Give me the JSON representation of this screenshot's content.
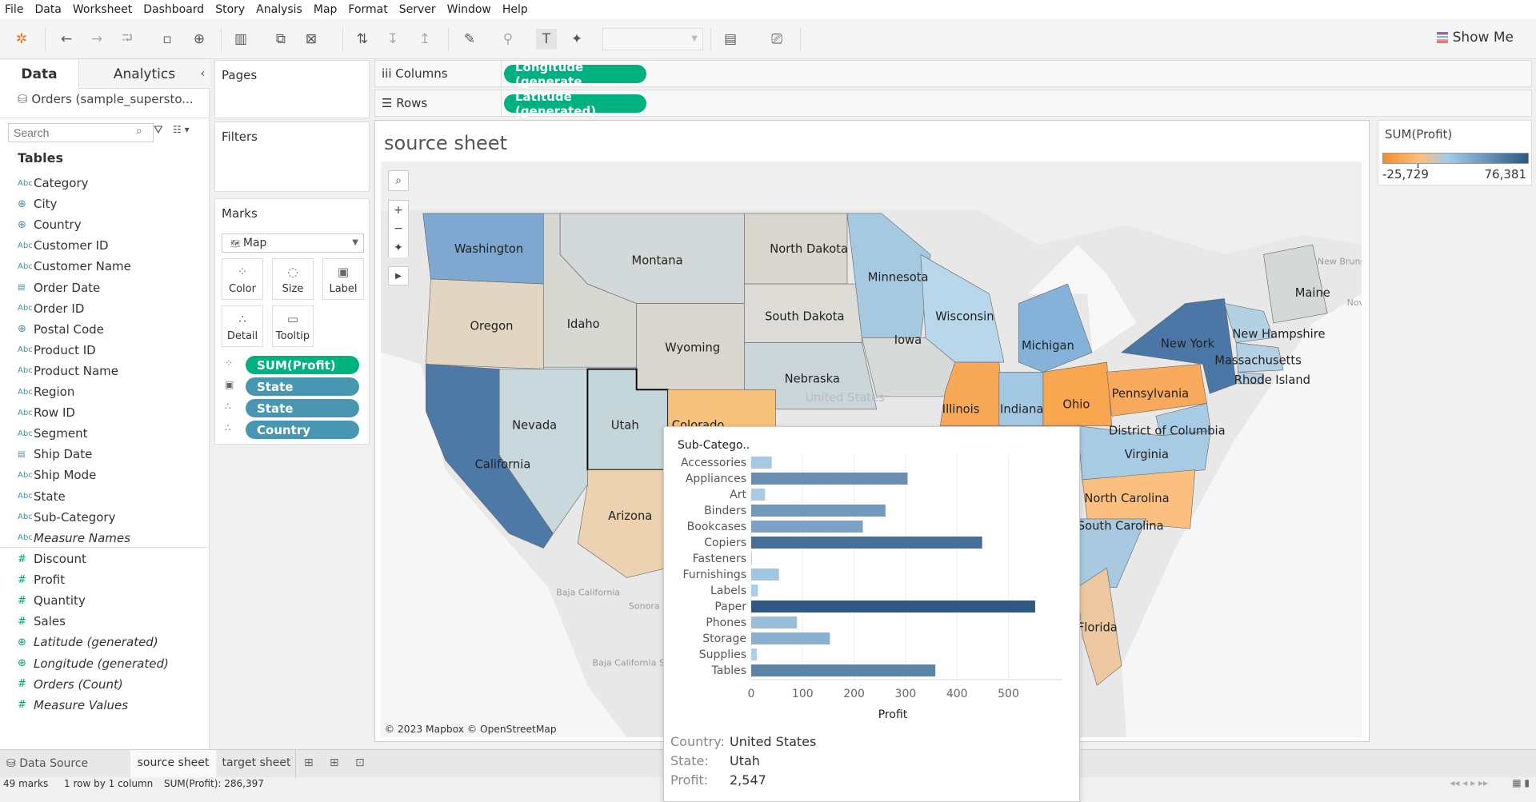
{
  "menu": [
    "File",
    "Data",
    "Worksheet",
    "Dashboard",
    "Story",
    "Analysis",
    "Map",
    "Format",
    "Server",
    "Window",
    "Help"
  ],
  "toolbar": {
    "show_me": "Show Me"
  },
  "left": {
    "tab_data": "Data",
    "tab_analytics": "Analytics",
    "datasource": "Orders (sample_supersto...",
    "search_placeholder": "Search",
    "tables_heading": "Tables",
    "dimensions": [
      {
        "icon": "Abc",
        "label": "Category"
      },
      {
        "icon": "globe",
        "label": "City"
      },
      {
        "icon": "globe",
        "label": "Country"
      },
      {
        "icon": "Abc",
        "label": "Customer ID"
      },
      {
        "icon": "Abc",
        "label": "Customer Name"
      },
      {
        "icon": "calendar",
        "label": "Order Date"
      },
      {
        "icon": "Abc",
        "label": "Order ID"
      },
      {
        "icon": "globe",
        "label": "Postal Code"
      },
      {
        "icon": "Abc",
        "label": "Product ID"
      },
      {
        "icon": "Abc",
        "label": "Product Name"
      },
      {
        "icon": "Abc",
        "label": "Region"
      },
      {
        "icon": "Abc",
        "label": "Row ID"
      },
      {
        "icon": "Abc",
        "label": "Segment"
      },
      {
        "icon": "calendar",
        "label": "Ship Date"
      },
      {
        "icon": "Abc",
        "label": "Ship Mode"
      },
      {
        "icon": "Abc",
        "label": "State"
      },
      {
        "icon": "Abc",
        "label": "Sub-Category"
      },
      {
        "icon": "Abc",
        "label": "Measure Names",
        "italic": true
      }
    ],
    "measures": [
      {
        "icon": "#",
        "label": "Discount"
      },
      {
        "icon": "#",
        "label": "Profit"
      },
      {
        "icon": "#",
        "label": "Quantity"
      },
      {
        "icon": "#",
        "label": "Sales"
      },
      {
        "icon": "globe",
        "label": "Latitude (generated)",
        "italic": true
      },
      {
        "icon": "globe",
        "label": "Longitude (generated)",
        "italic": true
      },
      {
        "icon": "#",
        "label": "Orders (Count)",
        "italic": true
      },
      {
        "icon": "#",
        "label": "Measure Values",
        "italic": true
      }
    ]
  },
  "cards": {
    "pages": "Pages",
    "filters": "Filters",
    "marks": "Marks",
    "mark_type": "Map",
    "buttons": [
      "Color",
      "Size",
      "Label",
      "Detail",
      "Tooltip"
    ],
    "pills": [
      {
        "label": "SUM(Profit)",
        "kind": "color"
      },
      {
        "label": "State",
        "kind": "label"
      },
      {
        "label": "State",
        "kind": "detail"
      },
      {
        "label": "Country",
        "kind": "detail"
      }
    ]
  },
  "shelves": {
    "columns_label": "Columns",
    "columns_pill": "Longitude (generate..",
    "rows_label": "Rows",
    "rows_pill": "Latitude (generated)"
  },
  "sheet": {
    "title": "source sheet",
    "attribution": "© 2023 Mapbox © OpenStreetMap"
  },
  "map_labels": {
    "united_states": "United States",
    "new_brunswick": "New Brunswick",
    "baja_california": "Baja California",
    "baja_california_sur": "Baja California Sur",
    "sonora": "Sonora",
    "nova": "Nova"
  },
  "states": [
    {
      "name": "Washington",
      "fill": "#7ea8cf"
    },
    {
      "name": "Oregon",
      "fill": "#e2d6c3"
    },
    {
      "name": "California",
      "fill": "#4e79a7"
    },
    {
      "name": "Nevada",
      "fill": "#c9d8dd"
    },
    {
      "name": "Idaho",
      "fill": "#d8d8d3"
    },
    {
      "name": "Montana",
      "fill": "#d3d9d8"
    },
    {
      "name": "Wyoming",
      "fill": "#d9d6cf"
    },
    {
      "name": "Utah",
      "fill": "#c5d6db"
    },
    {
      "name": "Arizona",
      "fill": "#ecd2b0"
    },
    {
      "name": "Colorado",
      "fill": "#f6c27c"
    },
    {
      "name": "North Dakota",
      "fill": "#d9d6cf"
    },
    {
      "name": "South Dakota",
      "fill": "#dcdbd6"
    },
    {
      "name": "Nebraska",
      "fill": "#cbd6db"
    },
    {
      "name": "Minnesota",
      "fill": "#a6c9e2"
    },
    {
      "name": "Iowa",
      "fill": "#d6dad9"
    },
    {
      "name": "Wisconsin",
      "fill": "#b9d7ea"
    },
    {
      "name": "Illinois",
      "fill": "#f8a957"
    },
    {
      "name": "Indiana",
      "fill": "#a3c8e4"
    },
    {
      "name": "Michigan",
      "fill": "#85b2d8"
    },
    {
      "name": "Ohio",
      "fill": "#f8a64f"
    },
    {
      "name": "Pennsylvania",
      "fill": "#f9a95b"
    },
    {
      "name": "New York",
      "fill": "#4a77a5"
    },
    {
      "name": "Maine",
      "fill": "#d4d8d6"
    },
    {
      "name": "New Hampshire",
      "fill": "#b3d0e5"
    },
    {
      "name": "Massachusetts",
      "fill": "#b3d0e5"
    },
    {
      "name": "Rhode Island",
      "fill": "#b3d0e5"
    },
    {
      "name": "District of Columbia",
      "fill": "#a8cbe4"
    },
    {
      "name": "Virginia",
      "fill": "#a8cbe4"
    },
    {
      "name": "North Carolina",
      "fill": "#fbc07f"
    },
    {
      "name": "South Carolina",
      "fill": "#a8c9e0"
    },
    {
      "name": "Florida",
      "fill": "#ecc7a0"
    }
  ],
  "legend": {
    "title": "SUM(Profit)",
    "min": "-25,729",
    "max": "76,381",
    "colors": [
      "#f28e2b",
      "#ffbe7d",
      "#a0cbe8",
      "#2c5985"
    ]
  },
  "tooltip": {
    "country_label": "Country:",
    "country": "United States",
    "state_label": "State:",
    "state": "Utah",
    "profit_label": "Profit:",
    "profit": "2,547"
  },
  "chart_data": {
    "type": "bar",
    "title": "",
    "ylabel": "Sub-Catego..",
    "xlabel": "Profit",
    "xlim": [
      0,
      570
    ],
    "xticks": [
      0,
      100,
      200,
      300,
      400,
      500
    ],
    "categories": [
      "Accessories",
      "Appliances",
      "Art",
      "Binders",
      "Bookcases",
      "Copiers",
      "Fasteners",
      "Furnishings",
      "Labels",
      "Paper",
      "Phones",
      "Storage",
      "Supplies",
      "Tables"
    ],
    "values": [
      40,
      304,
      27,
      261,
      217,
      449,
      1,
      54,
      13,
      552,
      89,
      153,
      11,
      358
    ]
  },
  "tabs": {
    "datasource": "Data Source",
    "sheets": [
      "source sheet",
      "target sheet"
    ]
  },
  "status": {
    "marks": "49 marks",
    "rows": "1 row by 1 column",
    "sum": "SUM(Profit): 286,397"
  }
}
